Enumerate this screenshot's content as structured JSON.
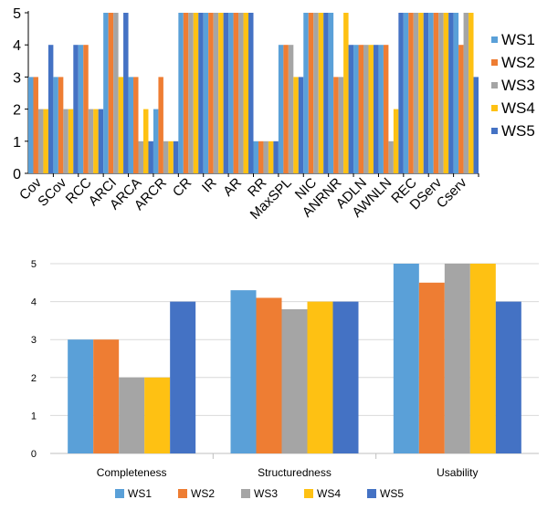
{
  "colors": [
    "#5aa0d8",
    "#ee7d33",
    "#a5a5a5",
    "#fec113",
    "#4472c4"
  ],
  "chart_data": [
    {
      "type": "bar",
      "title": "",
      "xlabel": "",
      "ylabel": "",
      "ylim": [
        0,
        5
      ],
      "yticks": [
        "0",
        "1",
        "2",
        "3",
        "4",
        "5"
      ],
      "grid": "none",
      "legend_placement": "right",
      "categories": [
        "Cov",
        "SCov",
        "RCC",
        "ARCI",
        "ARCA",
        "ARCR",
        "CR",
        "IR",
        "AR",
        "RR",
        "MaxSPL",
        "NIC",
        "ANRNR",
        "ADLN",
        "AWNLN",
        "REC",
        "DServ",
        "Cserv"
      ],
      "series": [
        {
          "name": "WS1",
          "values": [
            3,
            3,
            4,
            5,
            3,
            2,
            5,
            5,
            5,
            1,
            4,
            5,
            5,
            4,
            4,
            5,
            5,
            5
          ]
        },
        {
          "name": "WS2",
          "values": [
            3,
            3,
            4,
            5,
            3,
            3,
            5,
            5,
            5,
            1,
            4,
            5,
            3,
            4,
            4,
            5,
            5,
            4
          ]
        },
        {
          "name": "WS3",
          "values": [
            2,
            2,
            2,
            5,
            1,
            1,
            5,
            5,
            5,
            1,
            4,
            5,
            3,
            4,
            1,
            5,
            5,
            5
          ]
        },
        {
          "name": "WS4",
          "values": [
            2,
            2,
            2,
            3,
            2,
            1,
            5,
            5,
            5,
            1,
            3,
            5,
            5,
            4,
            2,
            5,
            5,
            5
          ]
        },
        {
          "name": "WS5",
          "values": [
            4,
            4,
            2,
            5,
            1,
            1,
            5,
            5,
            5,
            1,
            3,
            5,
            4,
            4,
            5,
            5,
            5,
            3
          ]
        }
      ]
    },
    {
      "type": "bar",
      "title": "",
      "xlabel": "",
      "ylabel": "",
      "ylim": [
        0,
        5
      ],
      "yticks": [
        "0",
        "1",
        "2",
        "3",
        "4",
        "5"
      ],
      "grid": "horizontal",
      "legend_placement": "bottom",
      "categories": [
        "Completeness",
        "Structuredness",
        "Usability"
      ],
      "series": [
        {
          "name": "WS1",
          "values": [
            3,
            4.3,
            5
          ]
        },
        {
          "name": "WS2",
          "values": [
            3,
            4.1,
            4.5
          ]
        },
        {
          "name": "WS3",
          "values": [
            2,
            3.8,
            5
          ]
        },
        {
          "name": "WS4",
          "values": [
            2,
            4,
            5
          ]
        },
        {
          "name": "WS5",
          "values": [
            4,
            4,
            4
          ]
        }
      ]
    }
  ]
}
